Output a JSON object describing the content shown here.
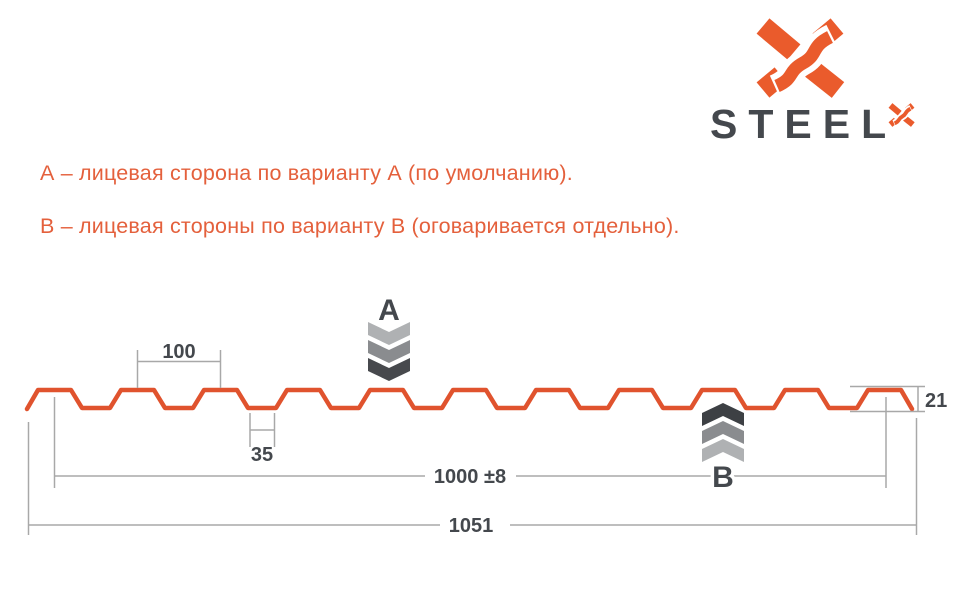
{
  "logo": {
    "wordmark": "STEEL",
    "mark_icon": "steelx-x-monogram"
  },
  "variant_notes": {
    "line_a": "А – лицевая сторона по варианту А (по умолчанию).",
    "line_b": "В – лицевая стороны по варианту В (оговаривается отдельно)."
  },
  "diagram": {
    "marker_a": "A",
    "marker_b": "B",
    "dim_pitch": "100",
    "dim_valley_width": "35",
    "dim_working_width": "1000 ±8",
    "dim_overall_width": "1051",
    "dim_height": "21"
  },
  "colors": {
    "orange": "#EA5B2C",
    "profile": "#E0532E",
    "note": "#E4603C",
    "dark": "#44484D",
    "dim_line": "#A8A8A8",
    "ch_light": "#AFB1B3",
    "ch_mid": "#8A8C8F",
    "ch_dark": "#47494D",
    "ch_darker": "#3D4044"
  }
}
